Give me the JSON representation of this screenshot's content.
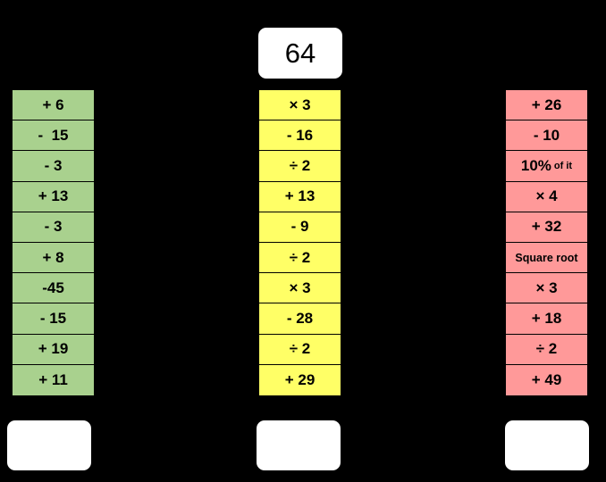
{
  "start_number": "64",
  "green_column": [
    "+ 6",
    "-  15",
    "- 3",
    "+ 13",
    "- 3",
    "+ 8",
    "-45",
    "- 15",
    "+ 19",
    "+ 11"
  ],
  "yellow_column": [
    "× 3",
    "- 16",
    "÷ 2",
    "+ 13",
    "- 9",
    "÷ 2",
    "× 3",
    "- 28",
    "÷ 2",
    "+ 29"
  ],
  "red_column": [
    {
      "main": "+ 26",
      "suffix": ""
    },
    {
      "main": "- 10",
      "suffix": ""
    },
    {
      "main": "10%",
      "suffix": "of it"
    },
    {
      "main": "× 4",
      "suffix": ""
    },
    {
      "main": "+ 32",
      "suffix": ""
    },
    {
      "main": "Square root",
      "suffix": "",
      "small": true
    },
    {
      "main": "× 3",
      "suffix": ""
    },
    {
      "main": "+ 18",
      "suffix": ""
    },
    {
      "main": "÷ 2",
      "suffix": ""
    },
    {
      "main": "+ 49",
      "suffix": ""
    }
  ],
  "answers": {
    "green": "",
    "yellow": "",
    "red": ""
  },
  "colors": {
    "background": "#000000",
    "green": "#a9d18e",
    "yellow": "#ffff66",
    "red": "#ff9999",
    "box": "#ffffff"
  }
}
